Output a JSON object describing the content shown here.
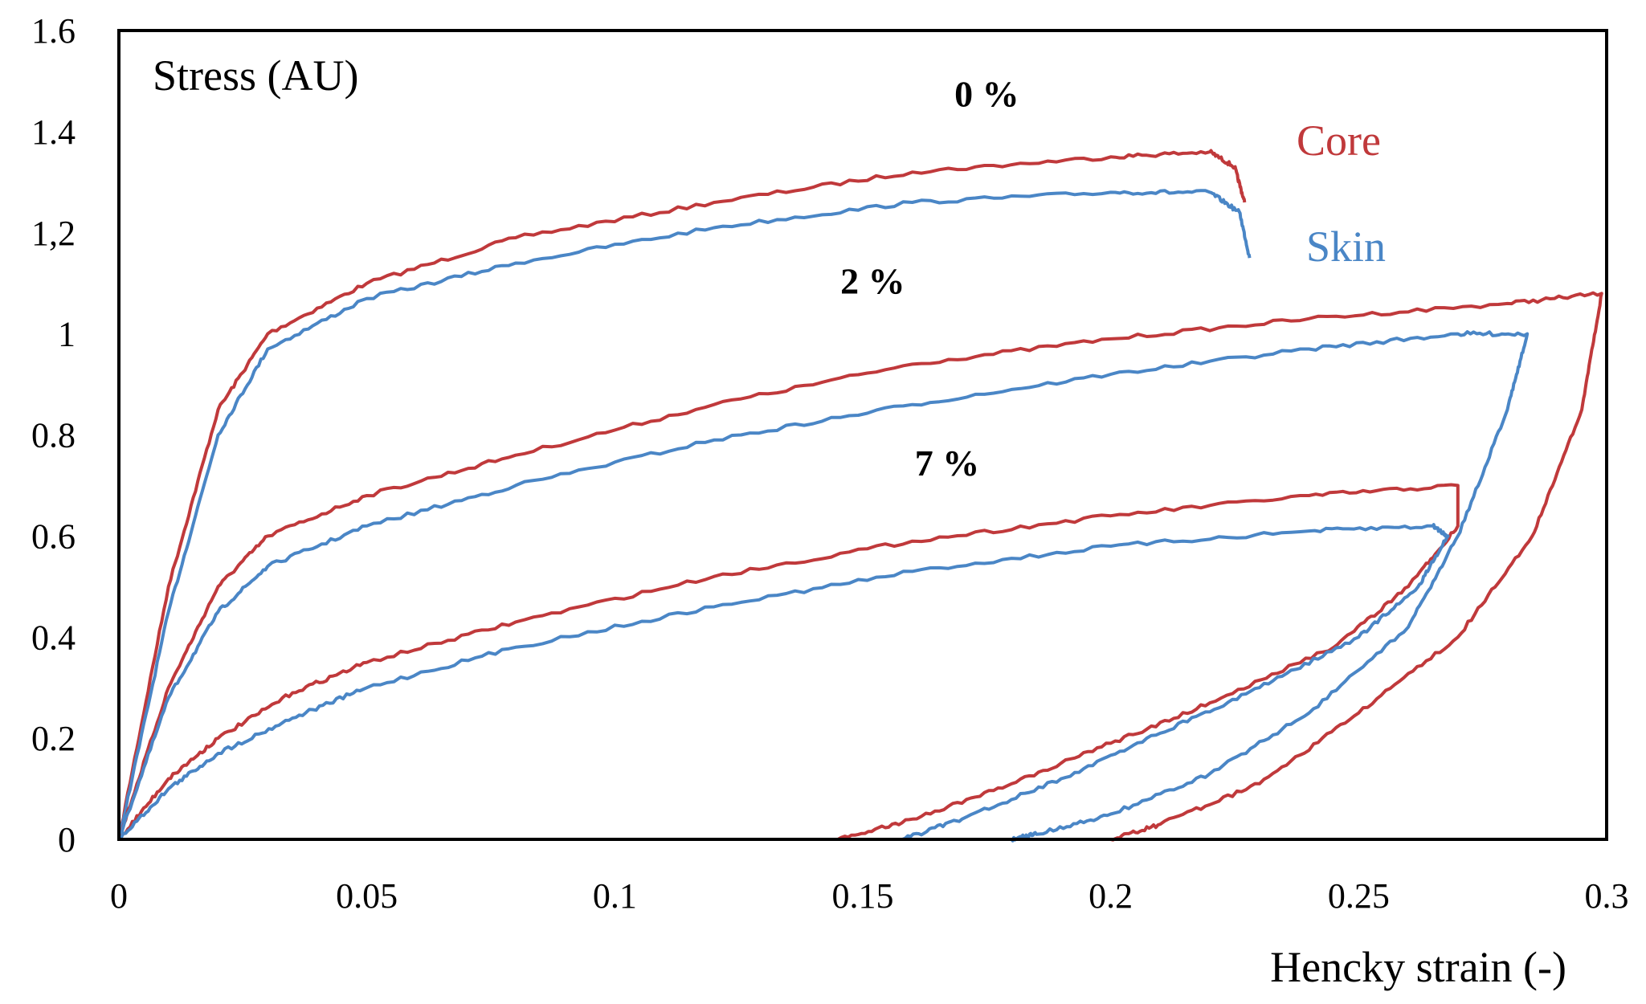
{
  "chart_data": {
    "type": "line",
    "title": "",
    "ylabel": "Stress (AU)",
    "xlabel": "Hencky strain (-)",
    "xlim": [
      0,
      0.3
    ],
    "ylim": [
      0,
      1.6
    ],
    "grid": false,
    "x_ticks": [
      "0",
      "0.05",
      "0.1",
      "0.15",
      "0.2",
      "0.25",
      "0.3"
    ],
    "y_ticks": [
      "0",
      "0.2",
      "0.4",
      "0.6",
      "0.8",
      "1",
      "1,2",
      "1.4",
      "1.6"
    ],
    "legend": [
      {
        "name": "Core",
        "color": "#c0393b"
      },
      {
        "name": "Skin",
        "color": "#4a86c6"
      }
    ],
    "annotations": [
      {
        "text": "0 %",
        "x": 0.175,
        "y": 1.45
      },
      {
        "text": "2 %",
        "x": 0.152,
        "y": 1.08
      },
      {
        "text": "7 %",
        "x": 0.167,
        "y": 0.72
      }
    ],
    "series": [
      {
        "name": "Core",
        "group": "0 %",
        "color": "#c0393b",
        "points": [
          [
            0,
            0
          ],
          [
            0.01,
            0.5
          ],
          [
            0.02,
            0.85
          ],
          [
            0.03,
            1.0
          ],
          [
            0.05,
            1.1
          ],
          [
            0.08,
            1.19
          ],
          [
            0.12,
            1.26
          ],
          [
            0.16,
            1.32
          ],
          [
            0.2,
            1.35
          ],
          [
            0.22,
            1.36
          ],
          [
            0.225,
            1.33
          ],
          [
            0.227,
            1.26
          ]
        ]
      },
      {
        "name": "Skin",
        "group": "0 %",
        "color": "#4a86c6",
        "points": [
          [
            0,
            0
          ],
          [
            0.01,
            0.45
          ],
          [
            0.02,
            0.8
          ],
          [
            0.03,
            0.97
          ],
          [
            0.05,
            1.07
          ],
          [
            0.08,
            1.14
          ],
          [
            0.12,
            1.21
          ],
          [
            0.16,
            1.26
          ],
          [
            0.2,
            1.28
          ],
          [
            0.22,
            1.28
          ],
          [
            0.226,
            1.24
          ],
          [
            0.228,
            1.15
          ]
        ]
      },
      {
        "name": "Core",
        "group": "2 %",
        "color": "#c0393b",
        "points": [
          [
            0,
            0
          ],
          [
            0.01,
            0.3
          ],
          [
            0.02,
            0.5
          ],
          [
            0.03,
            0.6
          ],
          [
            0.05,
            0.68
          ],
          [
            0.08,
            0.76
          ],
          [
            0.12,
            0.86
          ],
          [
            0.16,
            0.94
          ],
          [
            0.2,
            0.99
          ],
          [
            0.24,
            1.03
          ],
          [
            0.28,
            1.06
          ],
          [
            0.299,
            1.08
          ],
          [
            0.295,
            0.85
          ],
          [
            0.285,
            0.6
          ],
          [
            0.27,
            0.4
          ],
          [
            0.25,
            0.25
          ],
          [
            0.23,
            0.11
          ],
          [
            0.21,
            0.03
          ],
          [
            0.2,
            0
          ]
        ]
      },
      {
        "name": "Skin",
        "group": "2 %",
        "color": "#4a86c6",
        "points": [
          [
            0,
            0
          ],
          [
            0.01,
            0.28
          ],
          [
            0.02,
            0.45
          ],
          [
            0.03,
            0.54
          ],
          [
            0.05,
            0.62
          ],
          [
            0.08,
            0.7
          ],
          [
            0.12,
            0.79
          ],
          [
            0.16,
            0.86
          ],
          [
            0.2,
            0.92
          ],
          [
            0.24,
            0.97
          ],
          [
            0.27,
            1.0
          ],
          [
            0.284,
            1.0
          ],
          [
            0.28,
            0.85
          ],
          [
            0.27,
            0.6
          ],
          [
            0.26,
            0.42
          ],
          [
            0.24,
            0.25
          ],
          [
            0.22,
            0.13
          ],
          [
            0.2,
            0.05
          ],
          [
            0.185,
            0.01
          ],
          [
            0.18,
            0
          ]
        ]
      },
      {
        "name": "Core",
        "group": "7 %",
        "color": "#c0393b",
        "points": [
          [
            0,
            0
          ],
          [
            0.01,
            0.12
          ],
          [
            0.02,
            0.2
          ],
          [
            0.035,
            0.29
          ],
          [
            0.05,
            0.35
          ],
          [
            0.08,
            0.43
          ],
          [
            0.12,
            0.52
          ],
          [
            0.16,
            0.59
          ],
          [
            0.2,
            0.64
          ],
          [
            0.24,
            0.68
          ],
          [
            0.27,
            0.7
          ],
          [
            0.27,
            0.62
          ],
          [
            0.26,
            0.5
          ],
          [
            0.245,
            0.38
          ],
          [
            0.22,
            0.27
          ],
          [
            0.2,
            0.19
          ],
          [
            0.18,
            0.11
          ],
          [
            0.16,
            0.04
          ],
          [
            0.145,
            0
          ]
        ]
      },
      {
        "name": "Skin",
        "group": "7 %",
        "color": "#4a86c6",
        "points": [
          [
            0,
            0
          ],
          [
            0.01,
            0.1
          ],
          [
            0.02,
            0.17
          ],
          [
            0.035,
            0.24
          ],
          [
            0.05,
            0.3
          ],
          [
            0.08,
            0.38
          ],
          [
            0.12,
            0.46
          ],
          [
            0.16,
            0.53
          ],
          [
            0.2,
            0.58
          ],
          [
            0.24,
            0.61
          ],
          [
            0.265,
            0.62
          ],
          [
            0.268,
            0.6
          ],
          [
            0.262,
            0.5
          ],
          [
            0.25,
            0.4
          ],
          [
            0.23,
            0.3
          ],
          [
            0.21,
            0.21
          ],
          [
            0.19,
            0.12
          ],
          [
            0.17,
            0.04
          ],
          [
            0.158,
            0
          ]
        ]
      }
    ]
  }
}
